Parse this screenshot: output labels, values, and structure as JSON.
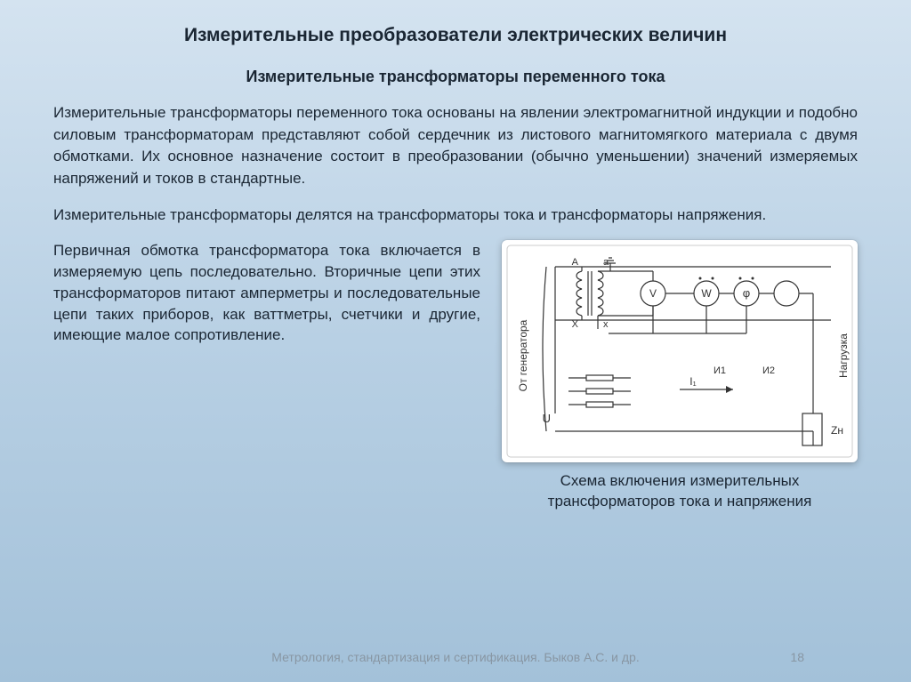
{
  "title": "Измерительные преобразователи электрических величин",
  "subtitle": "Измерительные трансформаторы переменного тока",
  "para1": "Измерительные трансформаторы переменного тока основаны на явлении электромагнитной индукции и подобно силовым трансформаторам представляют собой сердечник из листового магнитомягкого материала с двумя обмотками. Их основное назначение состоит в преобразовании (обычно уменьшении) значений измеряемых напряжений и токов в стандартные.",
  "para2": "Измерительные трансформаторы делятся на трансформаторы тока и трансформаторы напряжения.",
  "para3": "Первичная обмотка трансформатора тока включается в измеряемую цепь последовательно. Вторичные цепи этих трансформаторов питают амперметры и последовательные цепи таких приборов, как ваттметры, счетчики и другие, имеющие малое сопротивление.",
  "caption": "Схема включения измерительных трансформаторов тока и напряжения",
  "footer": "Метрология, стандартизация и сертификация. Быков А.С. и др.",
  "pageNumber": "18",
  "diagram": {
    "background": "#ffffff",
    "stroke": "#333333",
    "strokeWidth": 1.2,
    "labels": {
      "A": "A",
      "a": "a",
      "X": "X",
      "x": "x",
      "V": "V",
      "W": "W",
      "phi": "φ",
      "I1": "I₁",
      "U": "U",
      "И1": "И1",
      "И2": "И2",
      "gen": "От генератора",
      "load": "Нагрузка",
      "Zn": "Zн"
    },
    "circleRadius": 14
  }
}
